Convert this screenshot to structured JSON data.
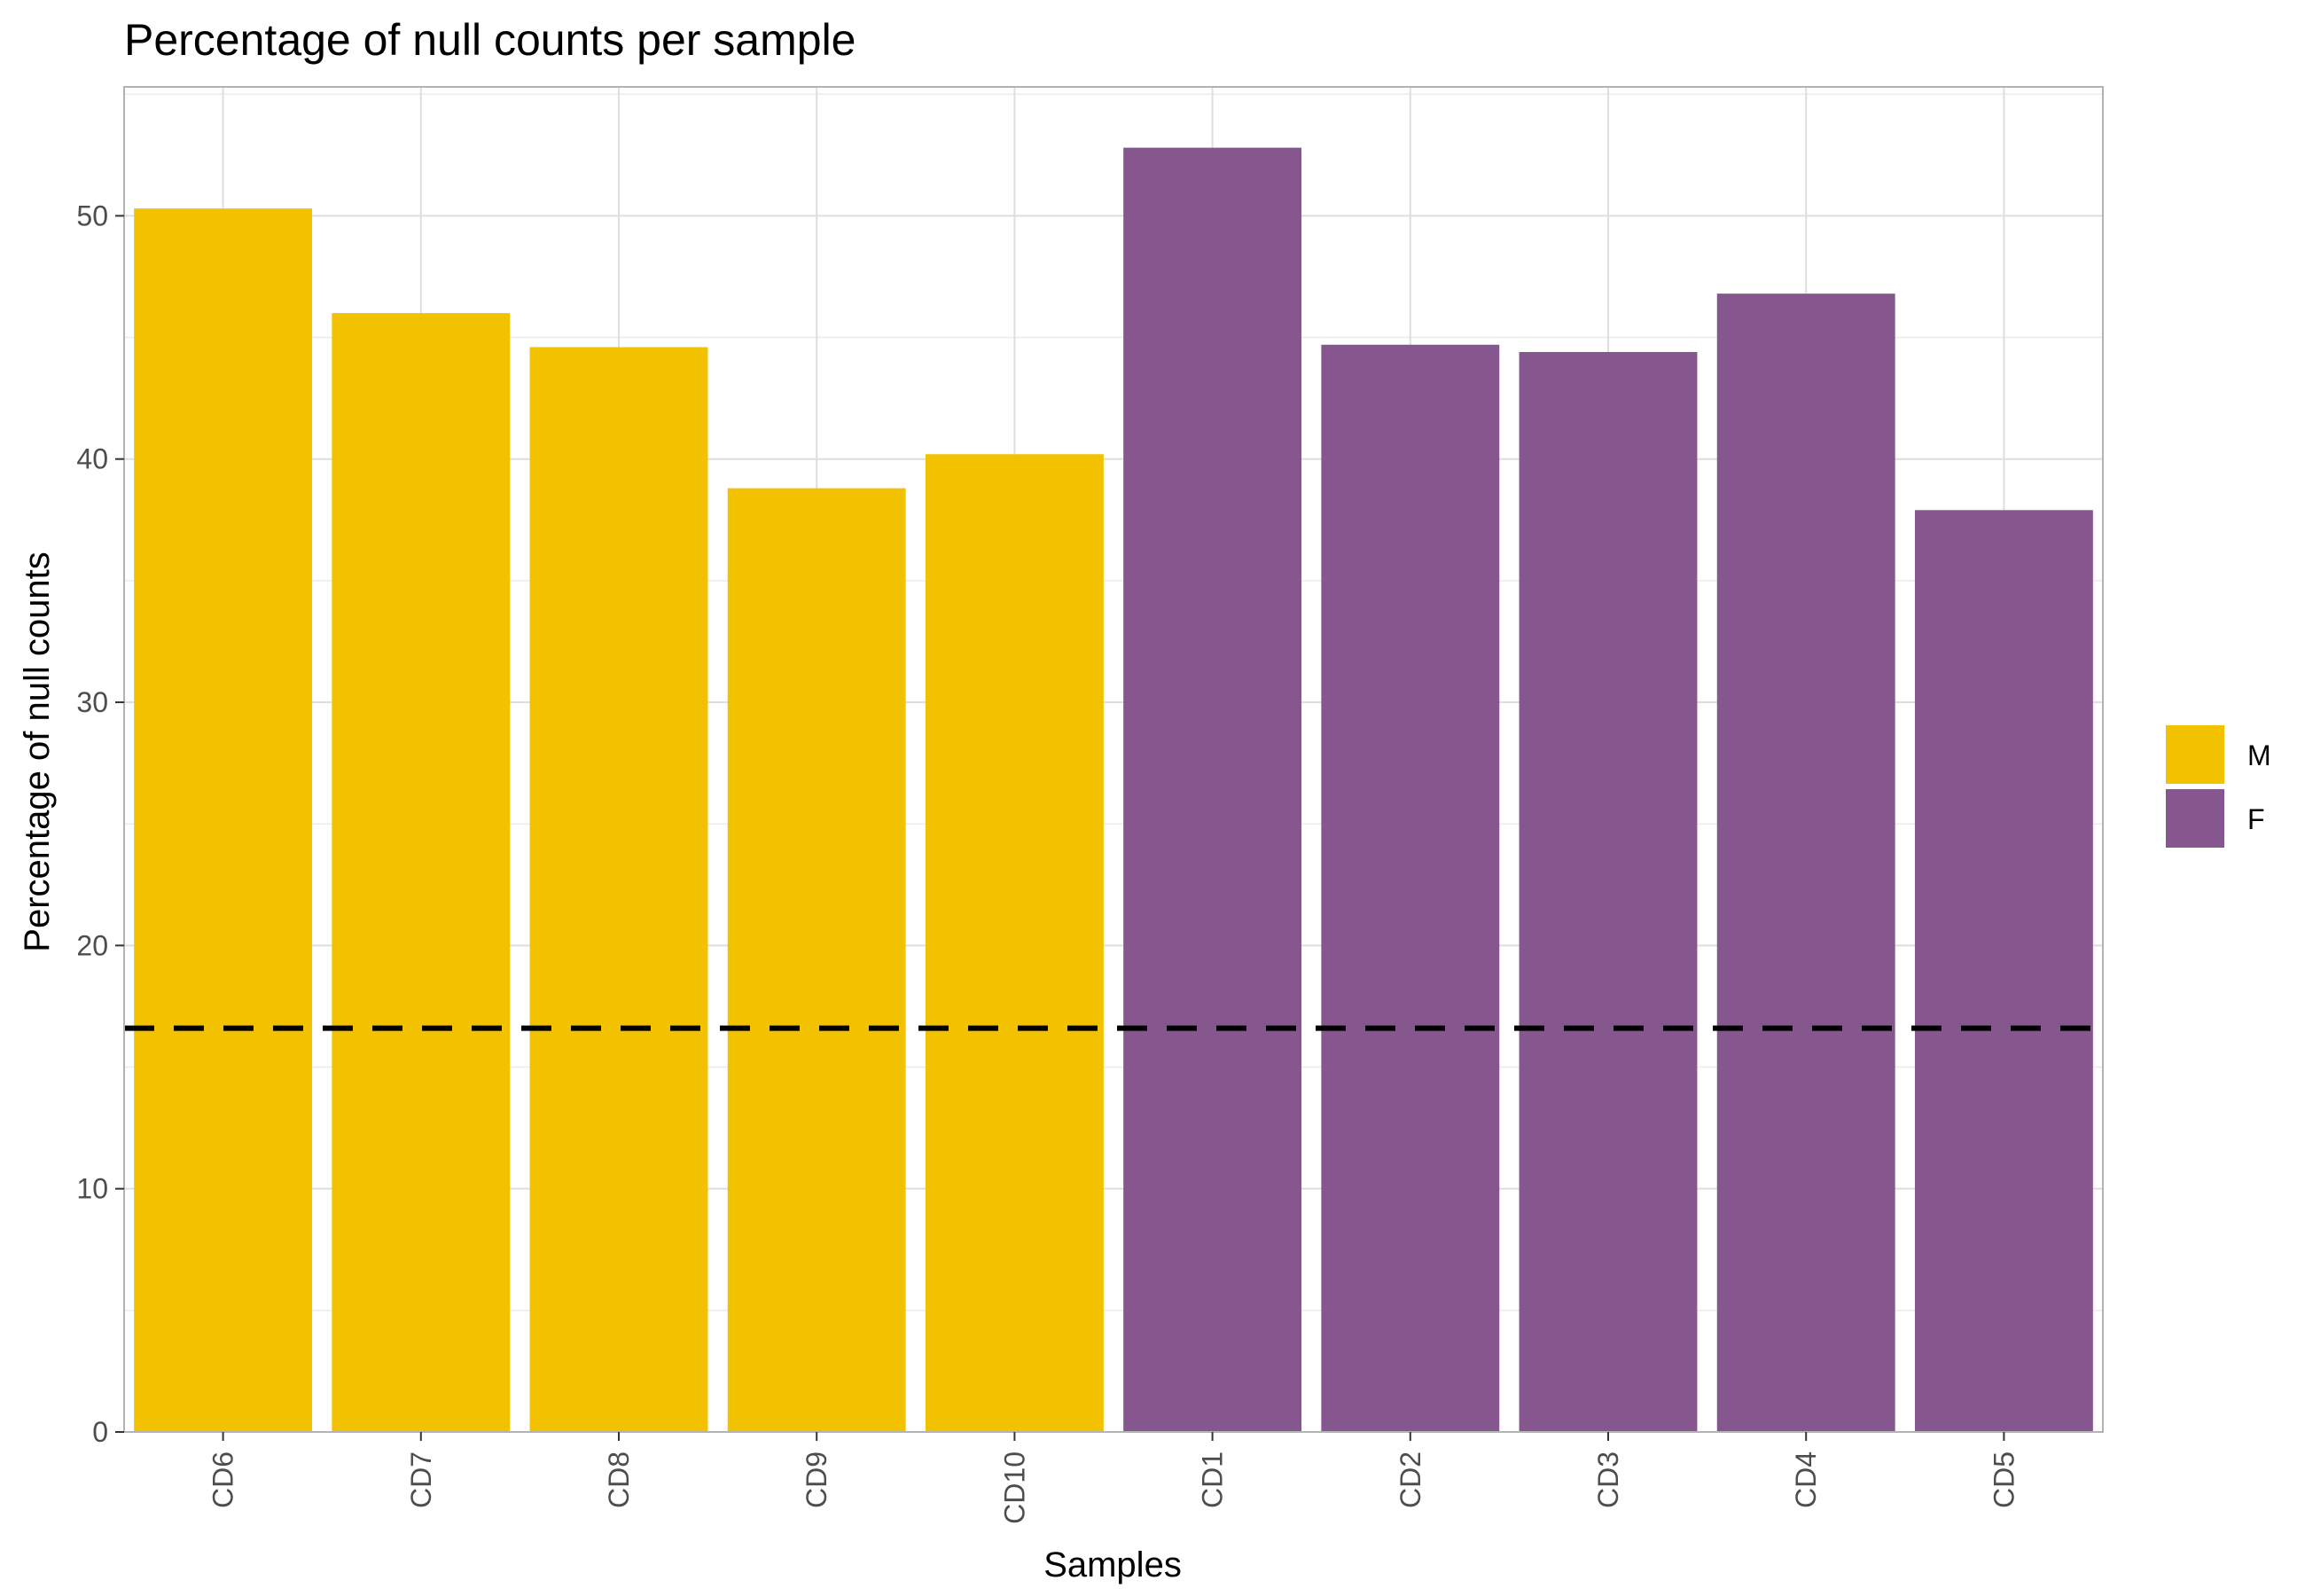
{
  "chart_data": {
    "type": "bar",
    "title": "Percentage of null counts per sample",
    "xlabel": "Samples",
    "ylabel": "Percentage of null counts",
    "categories": [
      "CD6",
      "CD7",
      "CD8",
      "CD9",
      "CD10",
      "CD1",
      "CD2",
      "CD3",
      "CD4",
      "CD5"
    ],
    "values": [
      50.3,
      46.0,
      44.6,
      38.8,
      40.2,
      52.8,
      44.7,
      44.4,
      46.8,
      37.9
    ],
    "groups": [
      "M",
      "M",
      "M",
      "M",
      "M",
      "F",
      "F",
      "F",
      "F",
      "F"
    ],
    "ylim": [
      0,
      55.3
    ],
    "yticks": [
      0,
      10,
      20,
      30,
      40,
      50
    ],
    "reference_line": {
      "value": 16.6,
      "style": "dashed",
      "color": "#000000"
    },
    "grid": true,
    "legend": {
      "placement": "right",
      "entries": [
        {
          "label": "M",
          "color": "#F2C200"
        },
        {
          "label": "F",
          "color": "#86568F"
        }
      ]
    }
  }
}
